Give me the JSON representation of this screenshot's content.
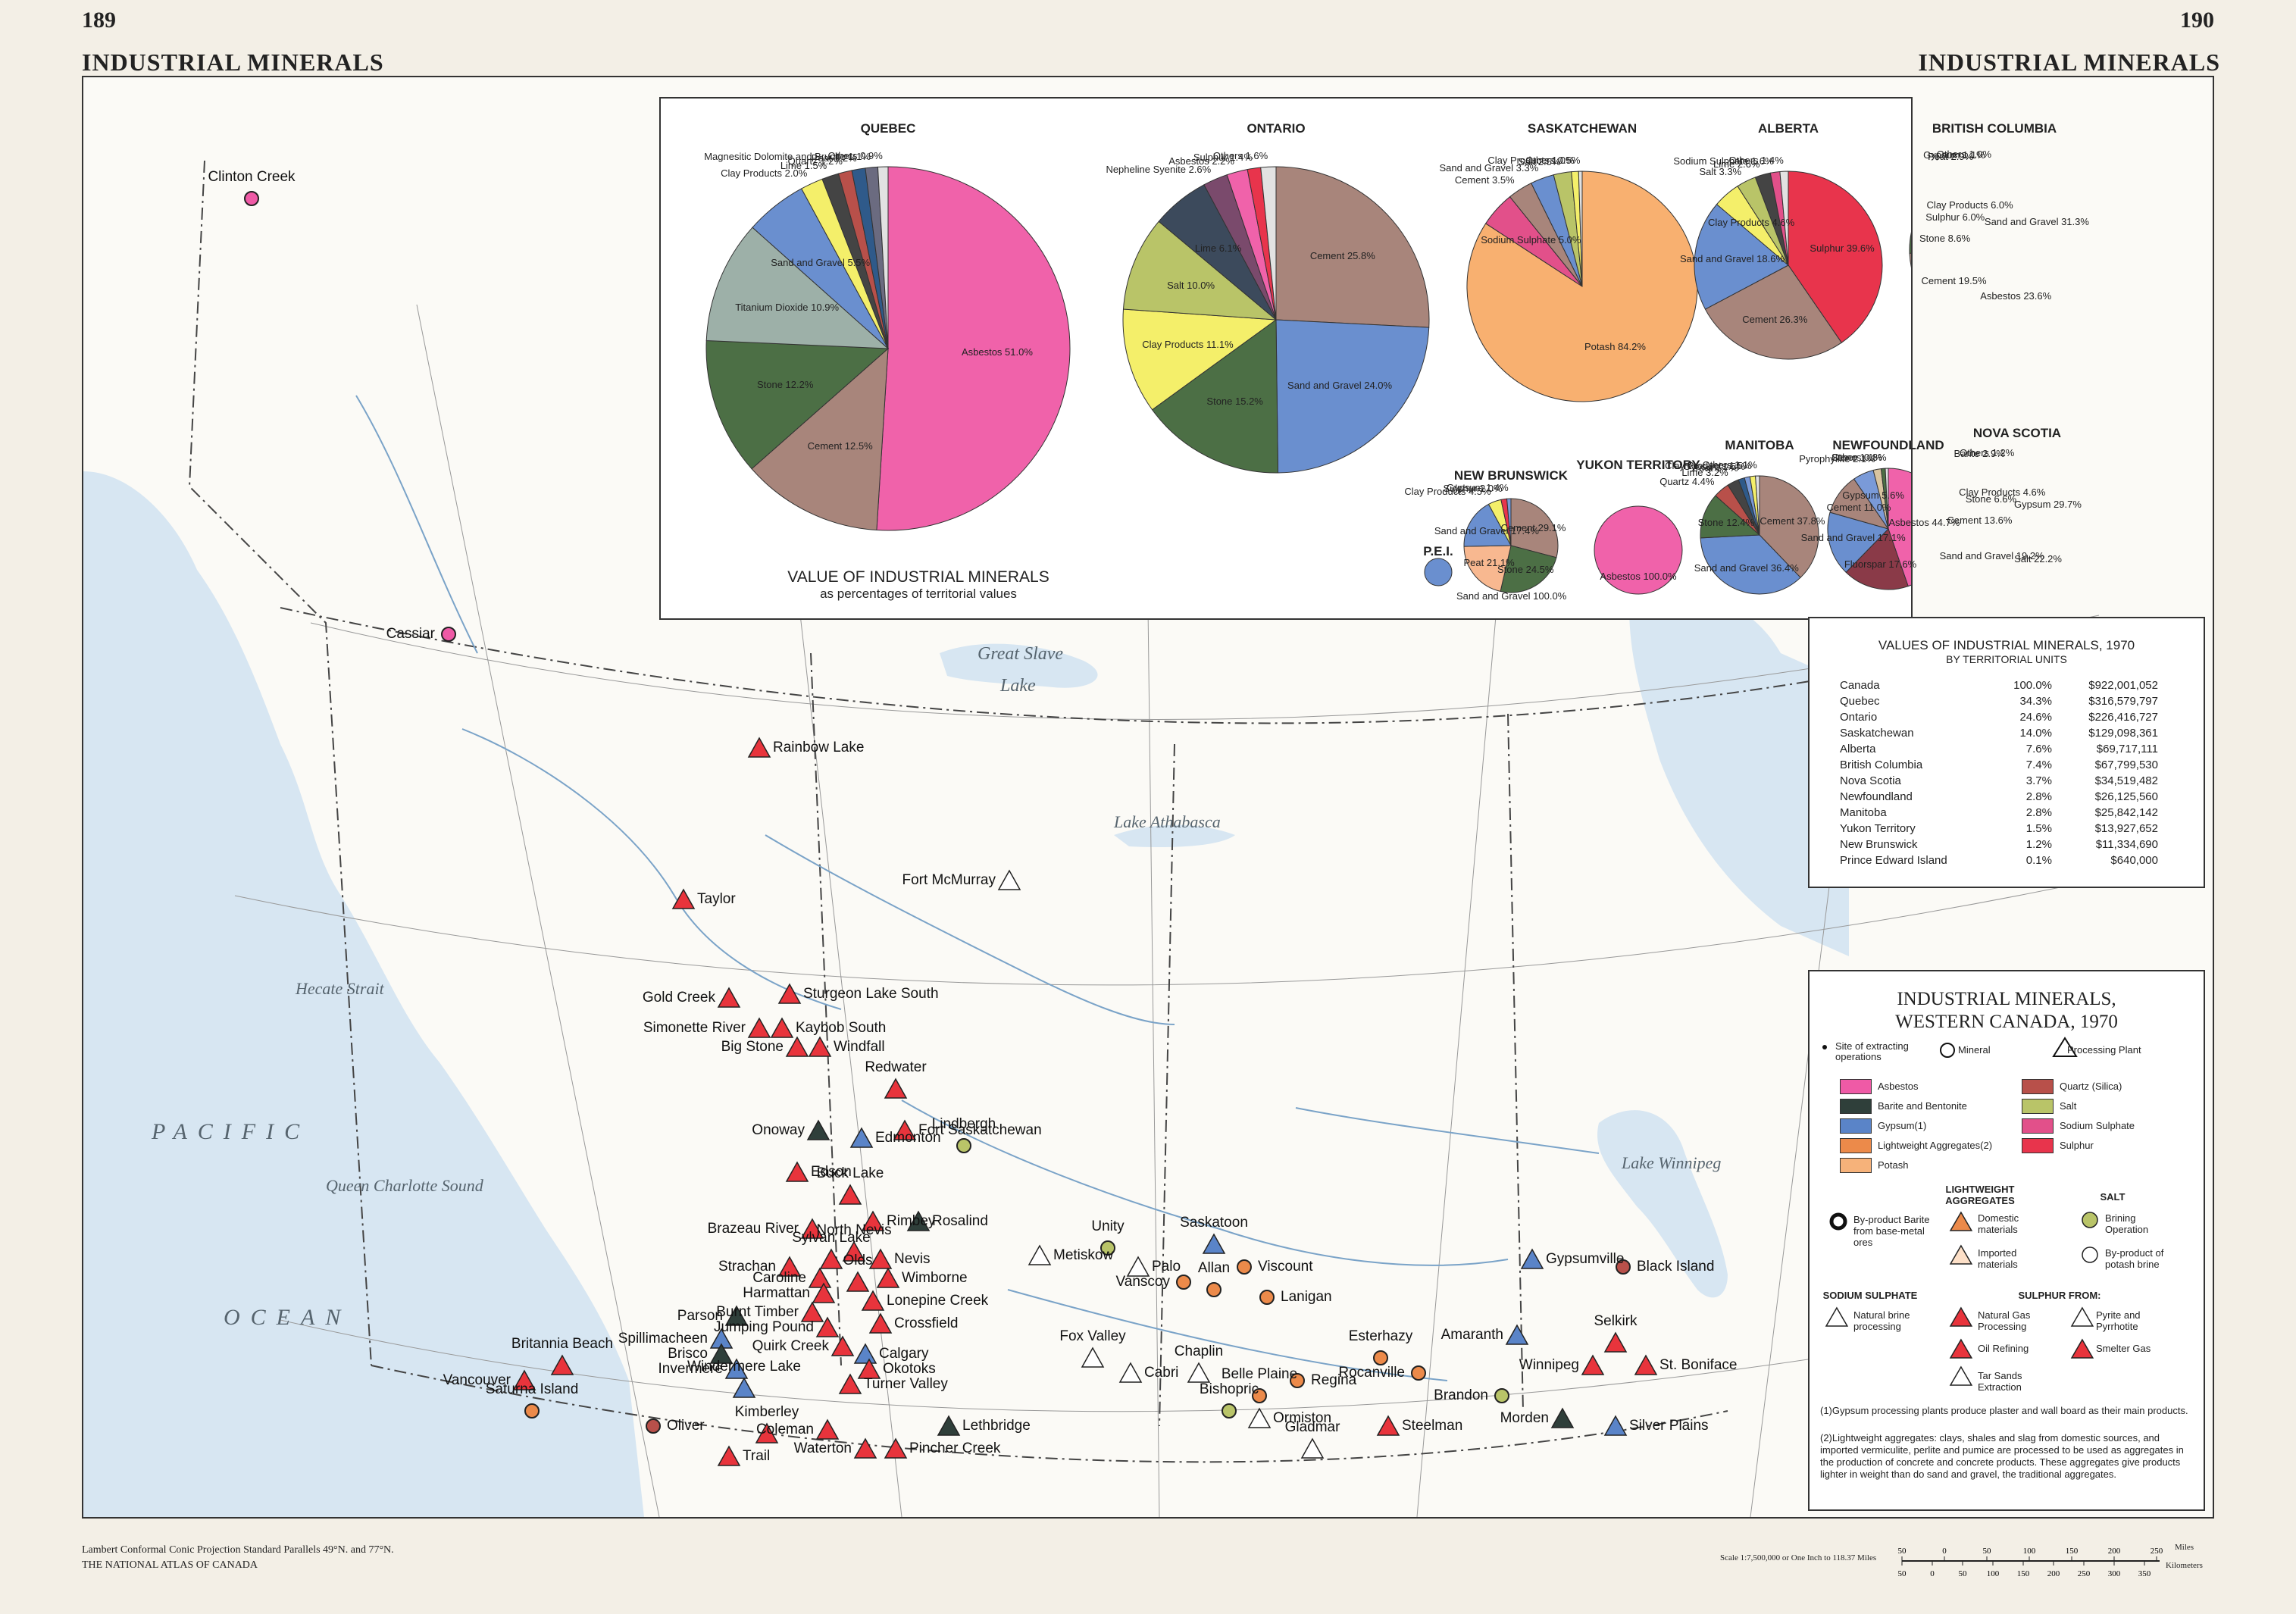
{
  "header": {
    "page_left": "189",
    "page_right": "190",
    "title_left": "INDUSTRIAL MINERALS",
    "title_right": "INDUSTRIAL MINERALS"
  },
  "colors": {
    "water": "#d7e6f2",
    "sodium_sulphate": "#ffffff",
    "sulphur_red": "#e8343c",
    "gypsum": "#5a84c8",
    "barite": "#2f3f3a",
    "lightweight": "#ec8a4a",
    "potash": "#f6b27a",
    "asbestos": "#ef5aa6",
    "quartz": "#b8504a",
    "salt": "#b9c468",
    "sodium": "#e2508a",
    "sulphur": "#e8344c"
  },
  "pies": [
    {
      "name": "QUEBEC",
      "slices": [
        {
          "label": "Asbestos 51.0%",
          "value": 51.0,
          "color": "#f062aa"
        },
        {
          "label": "Cement 12.5%",
          "value": 12.5,
          "color": "#a8857b"
        },
        {
          "label": "Stone 12.2%",
          "value": 12.2,
          "color": "#4c6f45"
        },
        {
          "label": "Titanium Dioxide 10.9%",
          "value": 10.9,
          "color": "#9db0a8"
        },
        {
          "label": "Sand and Gravel 5.5%",
          "value": 5.5,
          "color": "#6a8fcf"
        },
        {
          "label": "Clay Products 2.0%",
          "value": 2.0,
          "color": "#f4ef6a"
        },
        {
          "label": "Lime 1.5%",
          "value": 1.5,
          "color": "#444"
        },
        {
          "label": "Quartz 1.2%",
          "value": 1.2,
          "color": "#b8504a"
        },
        {
          "label": "Peat 1.2%",
          "value": 1.2,
          "color": "#2f5a8a"
        },
        {
          "label": "Magnesitic Dolomite and Brucite 1.1%",
          "value": 1.1,
          "color": "#6b6b80"
        },
        {
          "label": "Others 0.9%",
          "value": 0.9,
          "color": "#e2e2e2"
        }
      ]
    },
    {
      "name": "ONTARIO",
      "slices": [
        {
          "label": "Cement 25.8%",
          "value": 25.8,
          "color": "#a8857b"
        },
        {
          "label": "Sand and Gravel 24.0%",
          "value": 24.0,
          "color": "#6a8fcf"
        },
        {
          "label": "Stone 15.2%",
          "value": 15.2,
          "color": "#4c6f45"
        },
        {
          "label": "Clay Products 11.1%",
          "value": 11.1,
          "color": "#f4ef6a"
        },
        {
          "label": "Salt 10.0%",
          "value": 10.0,
          "color": "#b9c468"
        },
        {
          "label": "Lime 6.1%",
          "value": 6.1,
          "color": "#3c4a5c"
        },
        {
          "label": "Nepheline Syenite 2.6%",
          "value": 2.6,
          "color": "#7a4a6c"
        },
        {
          "label": "Asbestos 2.2%",
          "value": 2.2,
          "color": "#f062aa"
        },
        {
          "label": "Sulphur 1.4%",
          "value": 1.4,
          "color": "#e8344c"
        },
        {
          "label": "Others 1.6%",
          "value": 1.6,
          "color": "#e2e2e2"
        }
      ]
    },
    {
      "name": "SASKATCHEWAN",
      "slices": [
        {
          "label": "Potash 84.2%",
          "value": 84.2,
          "color": "#f8b070"
        },
        {
          "label": "Sodium Sulphate 5.0%",
          "value": 5.0,
          "color": "#e2508a"
        },
        {
          "label": "Cement 3.5%",
          "value": 3.5,
          "color": "#a8857b"
        },
        {
          "label": "Sand and Gravel 3.3%",
          "value": 3.3,
          "color": "#6a8fcf"
        },
        {
          "label": "Salt 2.5%",
          "value": 2.5,
          "color": "#b9c468"
        },
        {
          "label": "Clay Products 1.0%",
          "value": 1.0,
          "color": "#f4ef6a"
        },
        {
          "label": "Others 0.5%",
          "value": 0.5,
          "color": "#e2e2e2"
        }
      ]
    },
    {
      "name": "ALBERTA",
      "slices": [
        {
          "label": "Sulphur 39.6%",
          "value": 39.6,
          "color": "#e8344c"
        },
        {
          "label": "Cement 26.3%",
          "value": 26.3,
          "color": "#a8857b"
        },
        {
          "label": "Sand and Gravel 18.6%",
          "value": 18.6,
          "color": "#6a8fcf"
        },
        {
          "label": "Clay Products 4.6%",
          "value": 4.6,
          "color": "#f4ef6a"
        },
        {
          "label": "Salt 3.3%",
          "value": 3.3,
          "color": "#b9c468"
        },
        {
          "label": "Lime 2.6%",
          "value": 2.6,
          "color": "#444"
        },
        {
          "label": "Sodium Sulphate 1.6%",
          "value": 1.6,
          "color": "#e2508a"
        },
        {
          "label": "Others 1.4%",
          "value": 1.4,
          "color": "#e2e2e2"
        }
      ]
    },
    {
      "name": "BRITISH COLUMBIA",
      "slices": [
        {
          "label": "Sand and Gravel 31.3%",
          "value": 31.3,
          "color": "#6a8fcf"
        },
        {
          "label": "Asbestos 23.6%",
          "value": 23.6,
          "color": "#f062aa"
        },
        {
          "label": "Cement 19.5%",
          "value": 19.5,
          "color": "#a8857b"
        },
        {
          "label": "Stone 8.6%",
          "value": 8.6,
          "color": "#4c6f45"
        },
        {
          "label": "Sulphur 6.0%",
          "value": 6.0,
          "color": "#e8344c"
        },
        {
          "label": "Clay Products 6.0%",
          "value": 6.0,
          "color": "#f4ef6a"
        },
        {
          "label": "Peat 2.9%",
          "value": 2.9,
          "color": "#2f5a8a"
        },
        {
          "label": "Gypsum 1.1%",
          "value": 1.1,
          "color": "#7a9ad8"
        },
        {
          "label": "Others 1.0%",
          "value": 1.0,
          "color": "#e2e2e2"
        }
      ]
    },
    {
      "name": "P.E.I.",
      "slices": [
        {
          "label": "Sand and Gravel 100.0%",
          "value": 100.0,
          "color": "#6a8fcf"
        }
      ]
    },
    {
      "name": "NEW BRUNSWICK",
      "slices": [
        {
          "label": "Cement 29.1%",
          "value": 29.1,
          "color": "#a8857b"
        },
        {
          "label": "Stone 24.5%",
          "value": 24.5,
          "color": "#4c6f45"
        },
        {
          "label": "Peat 21.1%",
          "value": 21.1,
          "color": "#f8b890"
        },
        {
          "label": "Sand and Gravel 17.4%",
          "value": 17.4,
          "color": "#6a8fcf"
        },
        {
          "label": "Clay Products 4.5%",
          "value": 4.5,
          "color": "#f4ef6a"
        },
        {
          "label": "Sulphur 2.0%",
          "value": 2.0,
          "color": "#e8344c"
        },
        {
          "label": "Gypsum 1.4%",
          "value": 1.4,
          "color": "#7a9ad8"
        }
      ]
    },
    {
      "name": "YUKON TERRITORY",
      "slices": [
        {
          "label": "Asbestos 100.0%",
          "value": 100.0,
          "color": "#f062aa"
        }
      ]
    },
    {
      "name": "MANITOBA",
      "slices": [
        {
          "label": "Cement 37.8%",
          "value": 37.8,
          "color": "#a8857b"
        },
        {
          "label": "Sand and Gravel 36.4%",
          "value": 36.4,
          "color": "#6a8fcf"
        },
        {
          "label": "Stone 12.4%",
          "value": 12.4,
          "color": "#4c6f45"
        },
        {
          "label": "Quartz 4.4%",
          "value": 4.4,
          "color": "#b8504a"
        },
        {
          "label": "Lime 3.2%",
          "value": 3.2,
          "color": "#444"
        },
        {
          "label": "Peat 1.7%",
          "value": 1.7,
          "color": "#2f5a8a"
        },
        {
          "label": "Gypsum 1.5%",
          "value": 1.5,
          "color": "#7a9ad8"
        },
        {
          "label": "Clay Products 1.5%",
          "value": 1.5,
          "color": "#f4ef6a"
        },
        {
          "label": "Others 1.1%",
          "value": 1.1,
          "color": "#e2e2e2"
        }
      ]
    },
    {
      "name": "NEWFOUNDLAND",
      "slices": [
        {
          "label": "Asbestos 44.7%",
          "value": 44.7,
          "color": "#f062aa"
        },
        {
          "label": "Fluorspar 17.6%",
          "value": 17.6,
          "color": "#8a3a48"
        },
        {
          "label": "Sand and Gravel 17.1%",
          "value": 17.1,
          "color": "#6a8fcf"
        },
        {
          "label": "Cement 11.0%",
          "value": 11.0,
          "color": "#a8857b"
        },
        {
          "label": "Gypsum 5.6%",
          "value": 5.6,
          "color": "#7a9ad8"
        },
        {
          "label": "Pyrophyllite 2.1%",
          "value": 2.1,
          "color": "#d9c4a0"
        },
        {
          "label": "Stone 1.1%",
          "value": 1.1,
          "color": "#4c6f45"
        },
        {
          "label": "Others 0.8%",
          "value": 0.8,
          "color": "#e2e2e2"
        }
      ]
    },
    {
      "name": "NOVA SCOTIA",
      "slices": [
        {
          "label": "Gypsum 29.7%",
          "value": 29.7,
          "color": "#5a84c8"
        },
        {
          "label": "Salt 22.2%",
          "value": 22.2,
          "color": "#b9c468"
        },
        {
          "label": "Sand and Gravel 19.2%",
          "value": 19.2,
          "color": "#6a8fcf"
        },
        {
          "label": "Cement 13.6%",
          "value": 13.6,
          "color": "#a8857b"
        },
        {
          "label": "Stone 6.6%",
          "value": 6.6,
          "color": "#4c6f45"
        },
        {
          "label": "Clay Products 4.6%",
          "value": 4.6,
          "color": "#f4ef6a"
        },
        {
          "label": "Barite 2.9%",
          "value": 2.9,
          "color": "#2f3f3a"
        },
        {
          "label": "Others 1.2%",
          "value": 1.2,
          "color": "#e2e2e2"
        }
      ]
    }
  ],
  "pie_caption": {
    "line1": "VALUE OF INDUSTRIAL MINERALS",
    "line2": "as percentages of territorial values"
  },
  "values_table": {
    "title": "VALUES OF INDUSTRIAL MINERALS, 1970",
    "subtitle": "BY TERRITORIAL UNITS",
    "rows": [
      [
        "Canada",
        "100.0%",
        "$922,001,052"
      ],
      [
        "Quebec",
        "34.3%",
        "$316,579,797"
      ],
      [
        "Ontario",
        "24.6%",
        "$226,416,727"
      ],
      [
        "Saskatchewan",
        "14.0%",
        "$129,098,361"
      ],
      [
        "Alberta",
        "7.6%",
        "$69,717,111"
      ],
      [
        "British Columbia",
        "7.4%",
        "$67,799,530"
      ],
      [
        "Nova Scotia",
        "3.7%",
        "$34,519,482"
      ],
      [
        "Newfoundland",
        "2.8%",
        "$26,125,560"
      ],
      [
        "Manitoba",
        "2.8%",
        "$25,842,142"
      ],
      [
        "Yukon Territory",
        "1.5%",
        "$13,927,652"
      ],
      [
        "New Brunswick",
        "1.2%",
        "$11,334,690"
      ],
      [
        "Prince Edward Island",
        "0.1%",
        "$640,000"
      ]
    ]
  },
  "legend": {
    "title1": "INDUSTRIAL MINERALS,",
    "title2": "WESTERN CANADA, 1970",
    "site_label": "Site of extracting operations",
    "mineral_label": "Mineral",
    "plant_label": "Processing Plant",
    "minerals_left": [
      "Asbestos",
      "Barite and Bentonite",
      "Gypsum(1)",
      "Lightweight Aggregates(2)",
      "Potash"
    ],
    "minerals_right": [
      "Quartz (Silica)",
      "Salt",
      "Sodium Sulphate",
      "Sulphur"
    ],
    "lw_title": "LIGHTWEIGHT AGGREGATES",
    "salt_title": "SALT",
    "byproduct_barite": "By-product Barite from base-metal ores",
    "domestic": "Domestic materials",
    "imported": "Imported materials",
    "brining": "Brining Operation",
    "byproduct_potash": "By-product of potash brine",
    "sodium_title": "SODIUM SULPHATE",
    "natural_brine": "Natural brine processing",
    "sulphur_title": "SULPHUR FROM:",
    "natural_gas": "Natural Gas Processing",
    "oil": "Oil Refining",
    "tar": "Tar Sands Extraction",
    "pyrite": "Pyrite and Pyrrhotite",
    "smelter": "Smelter Gas",
    "note1": "(1)Gypsum processing plants produce plaster and wall board as their main products.",
    "note2": "(2)Lightweight aggregates: clays, shales and slag from domestic sources, and imported vermiculite, perlite and pumice are processed to be used as aggregates in the production of concrete and concrete products. These aggregates give products lighter in weight than do sand and gravel, the traditional aggregates."
  },
  "places": [
    "Rainbow Lake",
    "Taylor",
    "Fort McMurray",
    "Gold Creek",
    "Sturgeon Lake South",
    "Simonette River",
    "Kaybob South",
    "Big Stone",
    "Windfall",
    "Redwater",
    "Onoway",
    "Fort Saskatchewan",
    "Edmonton",
    "Lindbergh",
    "Edson",
    "Buck Lake",
    "Brazeau River",
    "Rimbey",
    "Rosalind",
    "North Nevis",
    "Nevis",
    "Strachan",
    "Sylvan Lake",
    "Olds",
    "Caroline",
    "Harmattan",
    "Wimborne",
    "Burnt Timber",
    "Lonepine Creek",
    "Jumping Pound",
    "Crossfield",
    "Quirk Creek",
    "Calgary",
    "Okotoks",
    "Turner Valley",
    "Parson",
    "Spillimacheen",
    "Brisco",
    "Invermere",
    "Windermere Lake",
    "Coleman",
    "Kimberley",
    "Waterton",
    "Pincher Creek",
    "Lethbridge",
    "Oliver",
    "Trail",
    "Vancouver",
    "Britannia Beach",
    "Saturna Island",
    "Cassiar",
    "Clinton Creek",
    "Metiskow",
    "Unity",
    "Palo",
    "Vanscoy",
    "Saskatoon",
    "Viscount",
    "Allan",
    "Lanigan",
    "Fox Valley",
    "Cabri",
    "Chaplin",
    "Belle Plaine",
    "Regina",
    "Bishopric",
    "Ormiston",
    "Esterhazy",
    "Rocanville",
    "Steelman",
    "Gladmar",
    "Amaranth",
    "Gypsumville",
    "Black Island",
    "Selkirk",
    "Winnipeg",
    "St. Boniface",
    "Brandon",
    "Morden",
    "Silver Plains"
  ],
  "water": {
    "pacific": "PACIFIC",
    "ocean": "OCEAN",
    "great_slave": "Great Slave",
    "lake": "Lake",
    "athabasca": "Lake Athabasca",
    "winnipeg": "Lake Winnipeg",
    "hecate": "Hecate Strait",
    "qcs": "Queen Charlotte Sound"
  },
  "footer": {
    "projection": "Lambert Conformal Conic Projection Standard Parallels 49°N. and 77°N.",
    "atlas": "THE NATIONAL ATLAS OF CANADA",
    "scale": "Scale 1:7,500,000 or One Inch to 118.37 Miles",
    "miles": "Miles",
    "km": "Kilometers",
    "scale_miles": [
      "50",
      "0",
      "50",
      "100",
      "150",
      "200",
      "250"
    ],
    "scale_km": [
      "50",
      "0",
      "50",
      "100",
      "150",
      "200",
      "250",
      "300",
      "350"
    ]
  }
}
